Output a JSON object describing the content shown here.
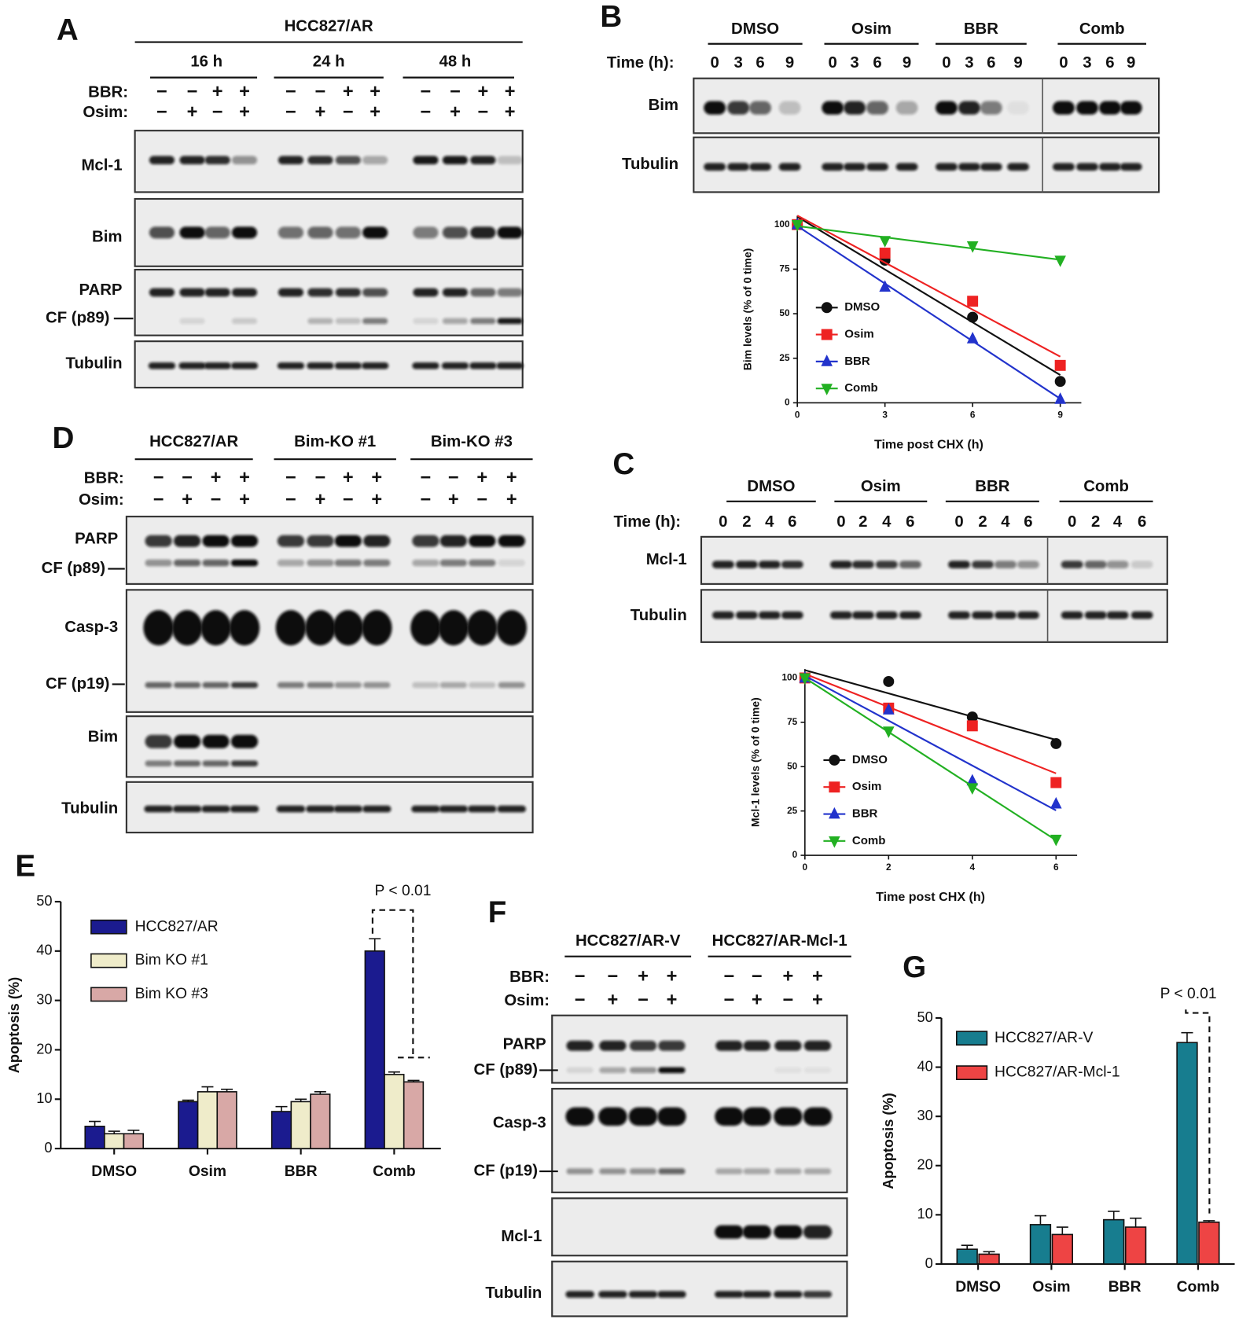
{
  "panels": {
    "A": {
      "letter": "A",
      "header": "HCC827/AR",
      "groups": [
        "16 h",
        "24 h",
        "48 h"
      ],
      "treatments": [
        "BBR:",
        "Osim:"
      ],
      "bbr_signs": [
        "−",
        "−",
        "+",
        "+"
      ],
      "osim_signs": [
        "−",
        "+",
        "−",
        "+"
      ],
      "rows": [
        "Mcl-1",
        "Bim",
        "PARP",
        "CF (p89)",
        "Tubulin"
      ]
    },
    "B": {
      "letter": "B",
      "groups": [
        "DMSO",
        "Osim",
        "BBR",
        "Comb"
      ],
      "time_label": "Time (h):",
      "times": [
        0,
        3,
        6,
        9
      ],
      "rows": [
        "Bim",
        "Tubulin"
      ]
    },
    "C": {
      "letter": "C",
      "groups": [
        "DMSO",
        "Osim",
        "BBR",
        "Comb"
      ],
      "time_label": "Time (h):",
      "times": [
        0,
        2,
        4,
        6
      ],
      "rows": [
        "Mcl-1",
        "Tubulin"
      ]
    },
    "D": {
      "letter": "D",
      "groups": [
        "HCC827/AR",
        "Bim-KO #1",
        "Bim-KO #3"
      ],
      "treatments": [
        "BBR:",
        "Osim:"
      ],
      "bbr_signs": [
        "−",
        "−",
        "+",
        "+"
      ],
      "osim_signs": [
        "−",
        "+",
        "−",
        "+"
      ],
      "rows": [
        "PARP",
        "CF (p89)",
        "Casp-3",
        "CF (p19)",
        "Bim",
        "Tubulin"
      ]
    },
    "E": {
      "letter": "E"
    },
    "F": {
      "letter": "F",
      "groups": [
        "HCC827/AR-V",
        "HCC827/AR-Mcl-1"
      ],
      "treatments": [
        "BBR:",
        "Osim:"
      ],
      "bbr_signs": [
        "−",
        "−",
        "+",
        "+"
      ],
      "osim_signs": [
        "−",
        "+",
        "−",
        "+"
      ],
      "rows": [
        "PARP",
        "CF (p89)",
        "Casp-3",
        "CF (p19)",
        "Mcl-1",
        "Tubulin"
      ]
    },
    "G": {
      "letter": "G"
    }
  },
  "chart_data": [
    {
      "type": "scatter",
      "trend": "linear",
      "x_label": "Time post CHX (h)",
      "y_label": "Bim levels (% of 0 time)",
      "x": [
        0,
        3,
        6,
        9
      ],
      "xlim": [
        0,
        9
      ],
      "xticks": [
        0,
        3,
        6,
        9
      ],
      "ylim": [
        0,
        105
      ],
      "yticks": [
        0,
        25,
        50,
        75,
        100
      ],
      "legend": "lower left",
      "series": [
        {
          "name": "DMSO",
          "color": "#111111",
          "marker": "circle",
          "values": [
            100,
            80,
            48,
            12
          ]
        },
        {
          "name": "Osim",
          "color": "#ee2222",
          "marker": "square",
          "values": [
            100,
            84,
            57,
            21
          ]
        },
        {
          "name": "BBR",
          "color": "#2233cc",
          "marker": "triangle-up",
          "values": [
            100,
            65,
            36,
            2
          ]
        },
        {
          "name": "Comb",
          "color": "#22b022",
          "marker": "triangle-down",
          "values": [
            100,
            91,
            88,
            80
          ]
        }
      ]
    },
    {
      "type": "scatter",
      "trend": "linear",
      "x_label": "Time post CHX (h)",
      "y_label": "Mcl-1 levels (% of 0 time)",
      "x": [
        0,
        2,
        4,
        6
      ],
      "xlim": [
        0,
        6
      ],
      "xticks": [
        0,
        2,
        4,
        6
      ],
      "ylim": [
        0,
        105
      ],
      "yticks": [
        0,
        25,
        50,
        75,
        100
      ],
      "legend": "lower left",
      "series": [
        {
          "name": "DMSO",
          "color": "#111111",
          "marker": "circle",
          "values": [
            100,
            98,
            78,
            63
          ]
        },
        {
          "name": "Osim",
          "color": "#ee2222",
          "marker": "square",
          "values": [
            100,
            83,
            73,
            41
          ]
        },
        {
          "name": "BBR",
          "color": "#2233cc",
          "marker": "triangle-up",
          "values": [
            100,
            82,
            42,
            29
          ]
        },
        {
          "name": "Comb",
          "color": "#22b022",
          "marker": "triangle-down",
          "values": [
            100,
            70,
            38,
            9
          ]
        }
      ]
    },
    {
      "type": "bar",
      "y_label": "Apoptosis (%)",
      "annotation": "P < 0.01",
      "legend": "upper left",
      "categories": [
        "DMSO",
        "Osim",
        "BBR",
        "Comb"
      ],
      "ylim": [
        0,
        50
      ],
      "yticks": [
        0,
        10,
        20,
        30,
        40,
        50
      ],
      "series": [
        {
          "name": "HCC827/AR",
          "color": "#1b1b8f",
          "values": [
            4.5,
            9.5,
            7.5,
            40
          ],
          "errors": [
            1,
            0.3,
            1,
            2.5
          ]
        },
        {
          "name": "Bim KO #1",
          "color": "#efecca",
          "values": [
            3,
            11.5,
            9.5,
            15
          ],
          "errors": [
            0.5,
            1,
            0.5,
            0.5
          ]
        },
        {
          "name": "Bim KO #3",
          "color": "#d8a8a6",
          "values": [
            3,
            11.5,
            11,
            13.5
          ],
          "errors": [
            0.7,
            0.5,
            0.5,
            0.3
          ]
        }
      ]
    },
    {
      "type": "bar",
      "y_label": "Apoptosis (%)",
      "annotation": "P < 0.01",
      "legend": "upper left",
      "categories": [
        "DMSO",
        "Osim",
        "BBR",
        "Comb"
      ],
      "ylim": [
        0,
        50
      ],
      "yticks": [
        0,
        10,
        20,
        30,
        40,
        50
      ],
      "series": [
        {
          "name": "HCC827/AR-V",
          "color": "#177d8f",
          "values": [
            3,
            8,
            9,
            45
          ],
          "errors": [
            0.8,
            1.8,
            1.7,
            2
          ]
        },
        {
          "name": "HCC827/AR-Mcl-1",
          "color": "#ee4444",
          "values": [
            2,
            6,
            7.5,
            8.5
          ],
          "errors": [
            0.5,
            1.5,
            1.8,
            0.3
          ]
        }
      ]
    }
  ]
}
